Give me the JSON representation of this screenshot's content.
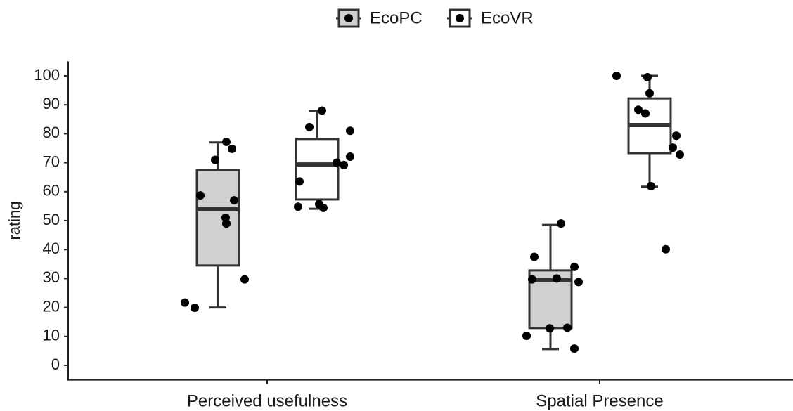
{
  "chart_data": {
    "type": "box",
    "ylabel": "rating",
    "categories": [
      "Perceived usefulness",
      "Spatial Presence"
    ],
    "ylim": [
      -5,
      105
    ],
    "yticks": [
      0,
      10,
      20,
      30,
      40,
      50,
      60,
      70,
      80,
      90,
      100
    ],
    "legend": "top",
    "series": [
      {
        "name": "EcoPC",
        "color": "#d0d0d0",
        "stats": [
          [
            20,
            34.5,
            53.9,
            67.5,
            77
          ],
          [
            5.6,
            12.9,
            29.4,
            32.8,
            48.5
          ]
        ],
        "points": [
          [
            21.7,
            19.9,
            58.7,
            71,
            77.2,
            74.8,
            51,
            49,
            57,
            29.7
          ],
          [
            10.2,
            37.5,
            29.7,
            12.8,
            30,
            13,
            34,
            28.8,
            5.8,
            49
          ]
        ]
      },
      {
        "name": "EcoVR",
        "color": "#ffffff",
        "stats": [
          [
            54.1,
            57.3,
            69.4,
            78.2,
            87.9
          ],
          [
            61.7,
            73.3,
            83,
            92.2,
            100
          ]
        ],
        "points": [
          [
            54.8,
            63.5,
            82.3,
            55.7,
            54.4,
            88,
            70,
            69.2,
            72.1,
            81
          ],
          [
            100,
            88.3,
            87,
            99.5,
            94,
            61.9,
            40.1,
            79.3,
            75.2,
            72.8
          ]
        ]
      }
    ]
  }
}
